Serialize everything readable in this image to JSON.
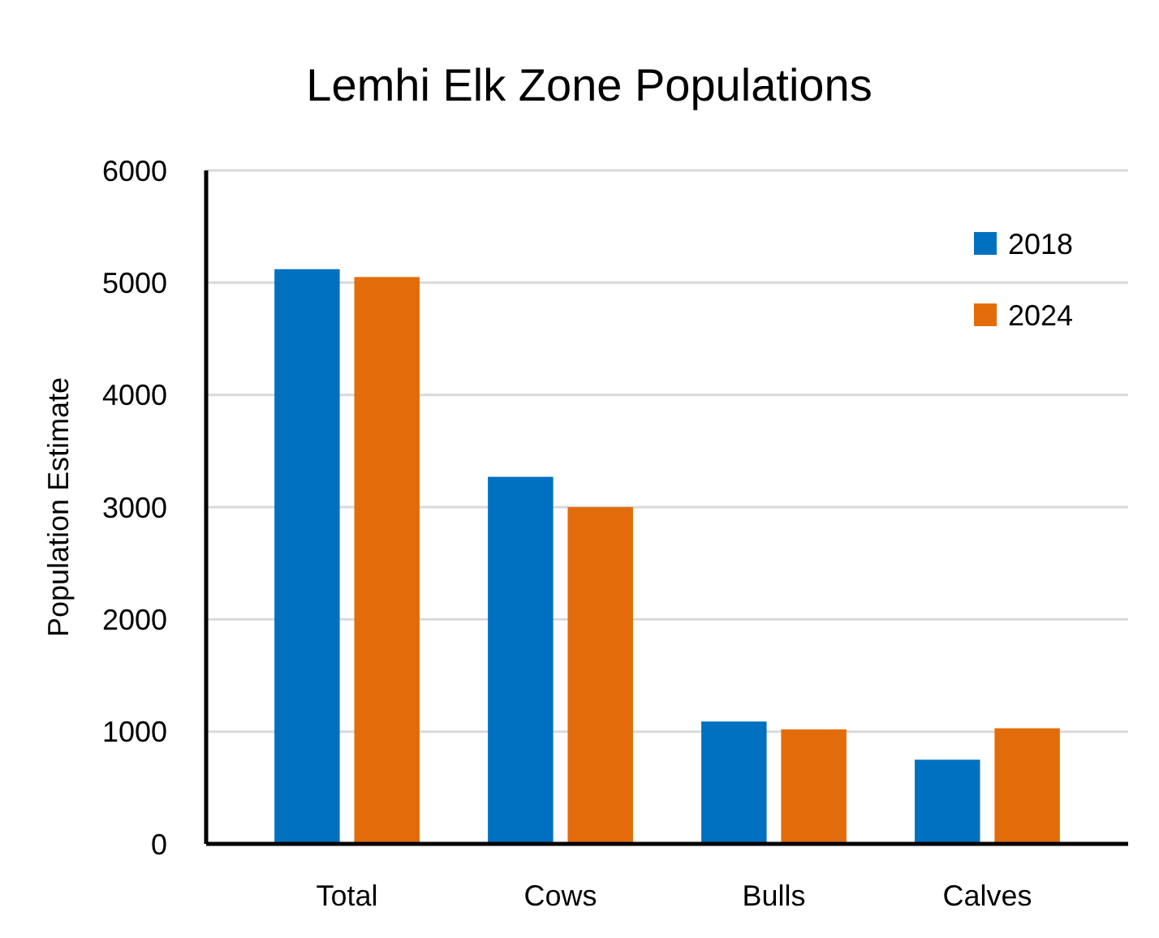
{
  "chart_data": {
    "type": "bar",
    "title": "Lemhi Elk Zone Populations",
    "ylabel": "Population Estimate",
    "categories": [
      "Total",
      "Cows",
      "Bulls",
      "Calves"
    ],
    "series": [
      {
        "name": "2018",
        "color": "#0070c0",
        "values": [
          5120,
          3270,
          1090,
          750
        ]
      },
      {
        "name": "2024",
        "color": "#e36c0a",
        "values": [
          5050,
          3000,
          1020,
          1030
        ]
      }
    ],
    "ylim": [
      0,
      6000
    ],
    "yticks": [
      0,
      1000,
      2000,
      3000,
      4000,
      5000,
      6000
    ],
    "grid": "y",
    "legend": "top right"
  }
}
